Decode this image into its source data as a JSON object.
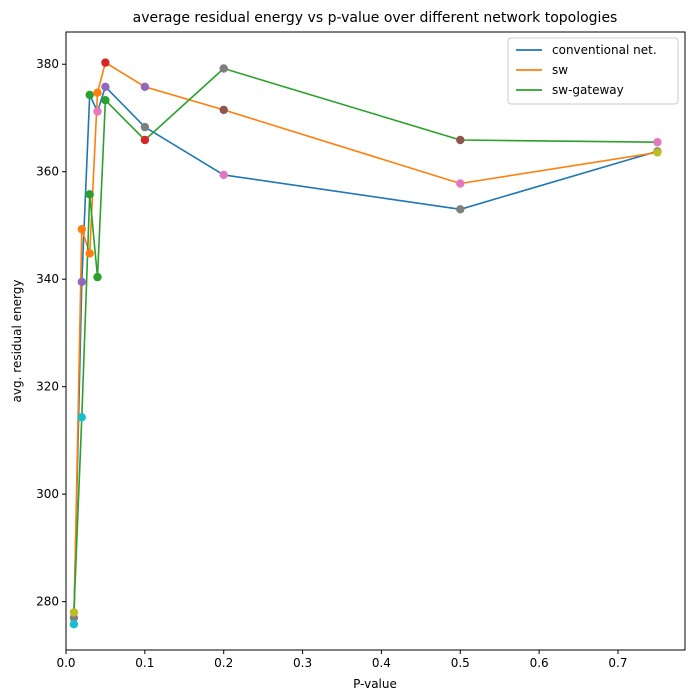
{
  "chart_data": {
    "type": "line",
    "title": "average residual energy vs p-value over different network topologies",
    "xlabel": "P-value",
    "ylabel": "avg. residual energy",
    "xlim": [
      0,
      0.785
    ],
    "ylim": [
      271,
      386
    ],
    "xticks": [
      0.0,
      0.1,
      0.2,
      0.3,
      0.4,
      0.5,
      0.6,
      0.7
    ],
    "xtick_labels": [
      "0.0",
      "0.1",
      "0.2",
      "0.3",
      "0.4",
      "0.5",
      "0.6",
      "0.7"
    ],
    "yticks": [
      280,
      300,
      320,
      340,
      360,
      380
    ],
    "ytick_labels": [
      "280",
      "300",
      "320",
      "340",
      "360",
      "380"
    ],
    "grid": false,
    "legend_position": "top-right",
    "series": [
      {
        "name": "conventional net.",
        "color": "#1f77b4",
        "x": [
          0.01,
          0.02,
          0.03,
          0.04,
          0.05,
          0.1,
          0.2,
          0.5,
          0.75
        ],
        "y": [
          277.0,
          339.5,
          374.3,
          371.2,
          375.8,
          368.3,
          359.4,
          353.0,
          363.8
        ]
      },
      {
        "name": "sw",
        "color": "#ff7f0e",
        "x": [
          0.01,
          0.02,
          0.03,
          0.04,
          0.05,
          0.1,
          0.2,
          0.5,
          0.75
        ],
        "y": [
          275.8,
          349.3,
          344.8,
          374.7,
          380.3,
          375.8,
          371.5,
          357.8,
          363.6
        ]
      },
      {
        "name": "sw-gateway",
        "color": "#2ca02c",
        "x": [
          0.01,
          0.02,
          0.03,
          0.04,
          0.05,
          0.1,
          0.2,
          0.5,
          0.75
        ],
        "y": [
          278.0,
          314.3,
          355.8,
          340.4,
          373.3,
          365.9,
          379.2,
          365.9,
          365.5
        ]
      }
    ],
    "scatter_colors": [
      "#1f77b4",
      "#ff7f0e",
      "#2ca02c",
      "#d62728",
      "#9467bd",
      "#8c564b",
      "#e377c2",
      "#7f7f7f",
      "#bcbd22",
      "#17becf"
    ],
    "scatter_points": [
      {
        "x": 0.01,
        "y": 277.0,
        "color": "#7f7f7f"
      },
      {
        "x": 0.01,
        "y": 275.8,
        "color": "#17becf"
      },
      {
        "x": 0.01,
        "y": 278.0,
        "color": "#bcbd22"
      },
      {
        "x": 0.02,
        "y": 339.5,
        "color": "#9467bd"
      },
      {
        "x": 0.02,
        "y": 349.3,
        "color": "#ff7f0e"
      },
      {
        "x": 0.02,
        "y": 314.3,
        "color": "#17becf"
      },
      {
        "x": 0.03,
        "y": 374.3,
        "color": "#2ca02c"
      },
      {
        "x": 0.03,
        "y": 344.8,
        "color": "#ff7f0e"
      },
      {
        "x": 0.03,
        "y": 355.8,
        "color": "#2ca02c"
      },
      {
        "x": 0.04,
        "y": 371.2,
        "color": "#e377c2"
      },
      {
        "x": 0.04,
        "y": 374.7,
        "color": "#ff7f0e"
      },
      {
        "x": 0.04,
        "y": 340.4,
        "color": "#2ca02c"
      },
      {
        "x": 0.05,
        "y": 375.8,
        "color": "#9467bd"
      },
      {
        "x": 0.05,
        "y": 380.3,
        "color": "#d62728"
      },
      {
        "x": 0.05,
        "y": 373.3,
        "color": "#2ca02c"
      },
      {
        "x": 0.1,
        "y": 368.3,
        "color": "#7f7f7f"
      },
      {
        "x": 0.1,
        "y": 375.8,
        "color": "#9467bd"
      },
      {
        "x": 0.1,
        "y": 365.9,
        "color": "#d62728"
      },
      {
        "x": 0.2,
        "y": 359.4,
        "color": "#e377c2"
      },
      {
        "x": 0.2,
        "y": 371.5,
        "color": "#8c564b"
      },
      {
        "x": 0.2,
        "y": 379.2,
        "color": "#7f7f7f"
      },
      {
        "x": 0.5,
        "y": 353.0,
        "color": "#7f7f7f"
      },
      {
        "x": 0.5,
        "y": 357.8,
        "color": "#e377c2"
      },
      {
        "x": 0.5,
        "y": 365.9,
        "color": "#8c564b"
      },
      {
        "x": 0.75,
        "y": 363.8,
        "color": "#7f7f7f"
      },
      {
        "x": 0.75,
        "y": 363.6,
        "color": "#bcbd22"
      },
      {
        "x": 0.75,
        "y": 365.5,
        "color": "#e377c2"
      }
    ]
  }
}
